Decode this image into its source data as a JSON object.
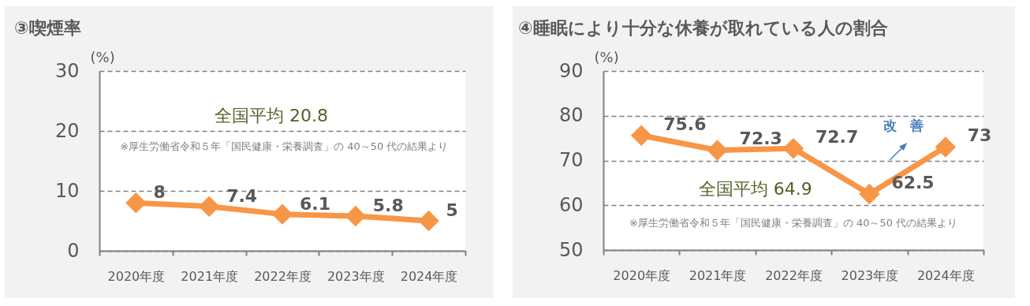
{
  "chart_data": [
    {
      "type": "line",
      "title": "③喫煙率",
      "ylabel": "(%)",
      "categories": [
        "2020年度",
        "2021年度",
        "2022年度",
        "2023年度",
        "2024年度"
      ],
      "series": [
        {
          "color": "#f79646",
          "values": [
            8,
            7.4,
            6.1,
            5.8,
            5
          ]
        }
      ],
      "ylim": [
        0,
        30
      ],
      "yticks": [
        0,
        10,
        20,
        30
      ],
      "grid": "y",
      "marker": "diamond",
      "data_labels": true,
      "legend": false,
      "annotations": [
        "全国平均 20.8",
        "※厚生労働省令和５年「国民健康・栄養調査」の 40～50 代の結果より"
      ]
    },
    {
      "type": "line",
      "title": "④睡眠により十分な休養が取れている人の割合",
      "ylabel": "(%)",
      "categories": [
        "2020年度",
        "2021年度",
        "2022年度",
        "2023年度",
        "2024年度"
      ],
      "series": [
        {
          "color": "#f79646",
          "values": [
            75.6,
            72.3,
            72.7,
            62.5,
            73
          ]
        }
      ],
      "ylim": [
        50,
        90
      ],
      "yticks": [
        50,
        60,
        70,
        80,
        90
      ],
      "grid": "y",
      "marker": "diamond",
      "data_labels": true,
      "legend": false,
      "annotations": [
        "全国平均 64.9",
        "※厚生労働省令和５年「国民健康・栄養調査」の 40～50 代の結果より",
        "改　善"
      ]
    }
  ]
}
